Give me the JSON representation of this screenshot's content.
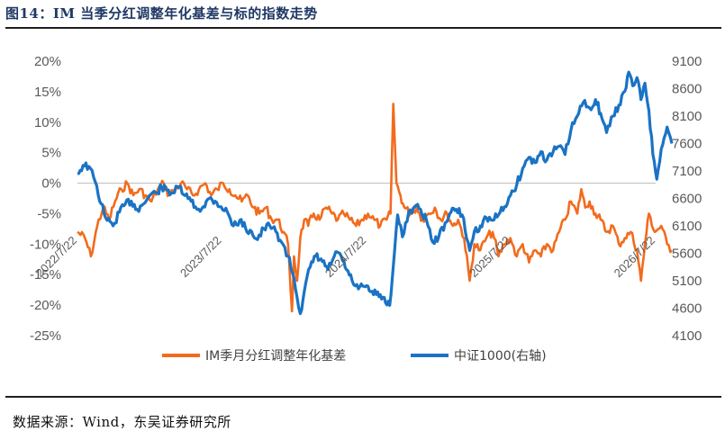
{
  "header": {
    "title": "图14：IM 当季分红调整年化基差与标的指数走势"
  },
  "footer": {
    "source": "数据来源：Wind，东吴证券研究所"
  },
  "chart_data": {
    "type": "line",
    "left_axis": {
      "ticks": [
        "20%",
        "15%",
        "10%",
        "5%",
        "0%",
        "-5%",
        "-10%",
        "-15%",
        "-20%",
        "-25%"
      ],
      "range": [
        -0.25,
        0.2
      ]
    },
    "right_axis": {
      "ticks": [
        "9100",
        "8600",
        "8100",
        "7600",
        "7100",
        "6600",
        "6100",
        "5600",
        "5100",
        "4600",
        "4100"
      ],
      "range": [
        4100,
        9100
      ]
    },
    "x_ticks": [
      "2022/7/22",
      "2023/7/22",
      "2024/7/22",
      "2025/7/22",
      "2026/7/22"
    ],
    "x_range": [
      "2022-07-22",
      "2026-07-22"
    ],
    "legend_position": "bottom",
    "series": [
      {
        "name": "IM季月分红调整年化基差",
        "axis": "left",
        "color": "#f26b1d",
        "points": [
          [
            "2022-07-22",
            -0.08
          ],
          [
            "2022-08-10",
            -0.09
          ],
          [
            "2022-08-25",
            -0.12
          ],
          [
            "2022-09-10",
            -0.07
          ],
          [
            "2022-09-25",
            -0.04
          ],
          [
            "2022-10-10",
            -0.06
          ],
          [
            "2022-10-25",
            -0.03
          ],
          [
            "2022-11-10",
            -0.01
          ],
          [
            "2022-11-25",
            0.0
          ],
          [
            "2022-12-10",
            -0.02
          ],
          [
            "2022-12-25",
            -0.01
          ],
          [
            "2023-01-10",
            -0.02
          ],
          [
            "2023-01-25",
            -0.03
          ],
          [
            "2023-02-10",
            -0.01
          ],
          [
            "2023-02-25",
            0.0
          ],
          [
            "2023-03-10",
            -0.02
          ],
          [
            "2023-03-25",
            -0.01
          ],
          [
            "2023-04-10",
            0.0
          ],
          [
            "2023-04-25",
            -0.01
          ],
          [
            "2023-05-10",
            -0.02
          ],
          [
            "2023-05-25",
            -0.01
          ],
          [
            "2023-06-10",
            0.0
          ],
          [
            "2023-06-25",
            -0.02
          ],
          [
            "2023-07-10",
            -0.01
          ],
          [
            "2023-07-25",
            0.0
          ],
          [
            "2023-08-10",
            -0.01
          ],
          [
            "2023-08-25",
            -0.02
          ],
          [
            "2023-09-10",
            -0.03
          ],
          [
            "2023-09-25",
            -0.02
          ],
          [
            "2023-10-10",
            -0.04
          ],
          [
            "2023-10-25",
            -0.05
          ],
          [
            "2023-11-10",
            -0.04
          ],
          [
            "2023-11-25",
            -0.06
          ],
          [
            "2023-12-10",
            -0.06
          ],
          [
            "2023-12-25",
            -0.08
          ],
          [
            "2024-01-05",
            -0.1
          ],
          [
            "2024-01-15",
            -0.21
          ],
          [
            "2024-01-20",
            -0.12
          ],
          [
            "2024-01-28",
            -0.16
          ],
          [
            "2024-02-05",
            -0.09
          ],
          [
            "2024-02-15",
            -0.06
          ],
          [
            "2024-02-25",
            -0.07
          ],
          [
            "2024-03-10",
            -0.05
          ],
          [
            "2024-03-25",
            -0.06
          ],
          [
            "2024-04-10",
            -0.04
          ],
          [
            "2024-04-25",
            -0.05
          ],
          [
            "2024-05-10",
            -0.06
          ],
          [
            "2024-05-25",
            -0.05
          ],
          [
            "2024-06-10",
            -0.06
          ],
          [
            "2024-06-25",
            -0.07
          ],
          [
            "2024-07-10",
            -0.06
          ],
          [
            "2024-07-25",
            -0.05
          ],
          [
            "2024-08-10",
            -0.06
          ],
          [
            "2024-08-25",
            -0.07
          ],
          [
            "2024-09-10",
            -0.06
          ],
          [
            "2024-09-20",
            -0.05
          ],
          [
            "2024-09-27",
            0.13
          ],
          [
            "2024-10-05",
            0.0
          ],
          [
            "2024-10-15",
            -0.02
          ],
          [
            "2024-10-25",
            -0.04
          ],
          [
            "2024-11-10",
            -0.05
          ],
          [
            "2024-11-25",
            -0.04
          ],
          [
            "2024-12-10",
            -0.06
          ],
          [
            "2024-12-25",
            -0.05
          ],
          [
            "2025-01-10",
            -0.04
          ],
          [
            "2025-01-25",
            -0.06
          ],
          [
            "2025-02-10",
            -0.05
          ],
          [
            "2025-02-25",
            -0.07
          ],
          [
            "2025-03-10",
            -0.06
          ],
          [
            "2025-03-25",
            -0.09
          ],
          [
            "2025-04-08",
            -0.16
          ],
          [
            "2025-04-20",
            -0.1
          ],
          [
            "2025-05-05",
            -0.11
          ],
          [
            "2025-05-20",
            -0.09
          ],
          [
            "2025-06-05",
            -0.08
          ],
          [
            "2025-06-20",
            -0.12
          ],
          [
            "2025-07-05",
            -0.1
          ],
          [
            "2025-07-20",
            -0.09
          ],
          [
            "2025-08-05",
            -0.12
          ],
          [
            "2025-08-20",
            -0.1
          ],
          [
            "2025-09-05",
            -0.13
          ],
          [
            "2025-09-20",
            -0.11
          ],
          [
            "2025-10-05",
            -0.12
          ],
          [
            "2025-10-20",
            -0.1
          ],
          [
            "2025-11-05",
            -0.11
          ],
          [
            "2025-11-20",
            -0.08
          ],
          [
            "2025-12-05",
            -0.06
          ],
          [
            "2025-12-20",
            -0.03
          ],
          [
            "2026-01-05",
            -0.05
          ],
          [
            "2026-01-15",
            -0.01
          ],
          [
            "2026-01-25",
            -0.04
          ],
          [
            "2026-02-05",
            -0.03
          ],
          [
            "2026-02-20",
            -0.05
          ],
          [
            "2026-03-05",
            -0.06
          ],
          [
            "2026-03-20",
            -0.08
          ],
          [
            "2026-04-05",
            -0.07
          ],
          [
            "2026-04-20",
            -0.1
          ],
          [
            "2026-05-05",
            -0.09
          ],
          [
            "2026-05-20",
            -0.08
          ],
          [
            "2026-06-05",
            -0.11
          ],
          [
            "2026-06-15",
            -0.16
          ],
          [
            "2026-06-25",
            -0.1
          ],
          [
            "2026-07-05",
            -0.05
          ],
          [
            "2026-07-20",
            -0.08
          ],
          [
            "2026-08-05",
            -0.07
          ],
          [
            "2026-08-20",
            -0.1
          ],
          [
            "2026-09-01",
            -0.11
          ]
        ]
      },
      {
        "name": "中证1000(右轴)",
        "axis": "right",
        "color": "#1a73c4",
        "points": [
          [
            "2022-07-22",
            7050
          ],
          [
            "2022-08-05",
            7200
          ],
          [
            "2022-08-20",
            7180
          ],
          [
            "2022-09-05",
            6900
          ],
          [
            "2022-09-20",
            6500
          ],
          [
            "2022-10-05",
            6200
          ],
          [
            "2022-10-20",
            6100
          ],
          [
            "2022-11-05",
            6350
          ],
          [
            "2022-11-20",
            6500
          ],
          [
            "2022-12-05",
            6550
          ],
          [
            "2022-12-20",
            6400
          ],
          [
            "2023-01-05",
            6500
          ],
          [
            "2023-01-20",
            6650
          ],
          [
            "2023-02-05",
            6700
          ],
          [
            "2023-02-20",
            6800
          ],
          [
            "2023-03-05",
            6750
          ],
          [
            "2023-03-20",
            6700
          ],
          [
            "2023-04-05",
            6800
          ],
          [
            "2023-04-20",
            6650
          ],
          [
            "2023-05-05",
            6550
          ],
          [
            "2023-05-20",
            6400
          ],
          [
            "2023-06-05",
            6450
          ],
          [
            "2023-06-20",
            6600
          ],
          [
            "2023-07-05",
            6550
          ],
          [
            "2023-07-20",
            6450
          ],
          [
            "2023-08-05",
            6350
          ],
          [
            "2023-08-20",
            6100
          ],
          [
            "2023-09-05",
            6200
          ],
          [
            "2023-09-20",
            6050
          ],
          [
            "2023-10-05",
            6000
          ],
          [
            "2023-10-20",
            5850
          ],
          [
            "2023-11-05",
            6050
          ],
          [
            "2023-11-20",
            6100
          ],
          [
            "2023-12-05",
            6000
          ],
          [
            "2023-12-20",
            5800
          ],
          [
            "2024-01-05",
            5550
          ],
          [
            "2024-01-20",
            5150
          ],
          [
            "2024-02-05",
            4500
          ],
          [
            "2024-02-15",
            4900
          ],
          [
            "2024-03-01",
            5350
          ],
          [
            "2024-03-15",
            5550
          ],
          [
            "2024-04-01",
            5450
          ],
          [
            "2024-04-15",
            5300
          ],
          [
            "2024-05-01",
            5550
          ],
          [
            "2024-05-15",
            5600
          ],
          [
            "2024-06-01",
            5300
          ],
          [
            "2024-06-15",
            5100
          ],
          [
            "2024-07-01",
            4950
          ],
          [
            "2024-07-15",
            5000
          ],
          [
            "2024-08-01",
            4900
          ],
          [
            "2024-08-15",
            4850
          ],
          [
            "2024-09-01",
            4800
          ],
          [
            "2024-09-18",
            4650
          ],
          [
            "2024-10-01",
            5700
          ],
          [
            "2024-10-08",
            6300
          ],
          [
            "2024-10-20",
            5900
          ],
          [
            "2024-11-05",
            6350
          ],
          [
            "2024-11-20",
            6450
          ],
          [
            "2024-12-05",
            6400
          ],
          [
            "2024-12-20",
            6200
          ],
          [
            "2025-01-05",
            5800
          ],
          [
            "2025-01-20",
            5900
          ],
          [
            "2025-02-05",
            6150
          ],
          [
            "2025-02-20",
            6350
          ],
          [
            "2025-03-05",
            6400
          ],
          [
            "2025-03-20",
            6300
          ],
          [
            "2025-04-08",
            5650
          ],
          [
            "2025-04-20",
            6000
          ],
          [
            "2025-05-05",
            6100
          ],
          [
            "2025-05-20",
            6250
          ],
          [
            "2025-06-05",
            6200
          ],
          [
            "2025-06-20",
            6300
          ],
          [
            "2025-07-05",
            6450
          ],
          [
            "2025-07-20",
            6650
          ],
          [
            "2025-08-05",
            6850
          ],
          [
            "2025-08-20",
            7150
          ],
          [
            "2025-09-05",
            7350
          ],
          [
            "2025-09-20",
            7250
          ],
          [
            "2025-10-05",
            7450
          ],
          [
            "2025-10-20",
            7300
          ],
          [
            "2025-11-05",
            7450
          ],
          [
            "2025-11-20",
            7550
          ],
          [
            "2025-12-05",
            7400
          ],
          [
            "2025-12-20",
            7850
          ],
          [
            "2026-01-05",
            8100
          ],
          [
            "2026-01-20",
            8350
          ],
          [
            "2026-02-05",
            8250
          ],
          [
            "2026-02-20",
            8400
          ],
          [
            "2026-03-05",
            8150
          ],
          [
            "2026-03-20",
            7800
          ],
          [
            "2026-04-05",
            8100
          ],
          [
            "2026-04-20",
            8300
          ],
          [
            "2026-05-05",
            8550
          ],
          [
            "2026-05-15",
            8900
          ],
          [
            "2026-05-25",
            8650
          ],
          [
            "2026-06-05",
            8800
          ],
          [
            "2026-06-15",
            8400
          ],
          [
            "2026-06-25",
            8700
          ],
          [
            "2026-07-05",
            8200
          ],
          [
            "2026-07-15",
            7400
          ],
          [
            "2026-07-25",
            6950
          ],
          [
            "2026-08-05",
            7500
          ],
          [
            "2026-08-20",
            7900
          ],
          [
            "2026-09-01",
            7600
          ]
        ]
      }
    ]
  }
}
